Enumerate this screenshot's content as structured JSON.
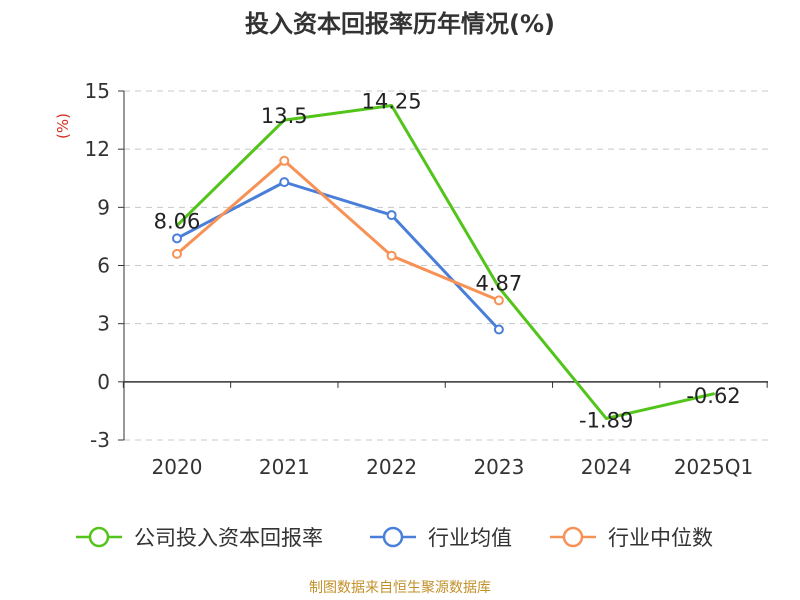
{
  "title": "投入资本回报率历年情况(%)",
  "source": "制图数据来自恒生聚源数据库",
  "chart_data": {
    "type": "line",
    "categories": [
      "2020",
      "2021",
      "2022",
      "2023",
      "2024",
      "2025Q1"
    ],
    "ylabel": "(%)",
    "ylim": [
      -3,
      15
    ],
    "yticks": [
      -3,
      0,
      3,
      6,
      9,
      12,
      15
    ],
    "grid": true,
    "legend_position": "bottom",
    "series": [
      {
        "name": "公司投入资本回报率",
        "color": "#52c41a",
        "values": [
          8.06,
          13.5,
          14.25,
          4.87,
          -1.89,
          -0.62
        ],
        "labels": [
          "8.06",
          "13.5",
          "14.25",
          "4.87",
          "-1.89",
          "-0.62"
        ],
        "show_labels": true,
        "show_markers": false
      },
      {
        "name": "行业均值",
        "color": "#4a7fd9",
        "values": [
          7.4,
          10.3,
          8.6,
          2.7,
          null,
          null
        ],
        "show_labels": false,
        "show_markers": true
      },
      {
        "name": "行业中位数",
        "color": "#f79256",
        "values": [
          6.6,
          11.4,
          6.5,
          4.2,
          null,
          null
        ],
        "show_labels": false,
        "show_markers": true
      }
    ]
  }
}
